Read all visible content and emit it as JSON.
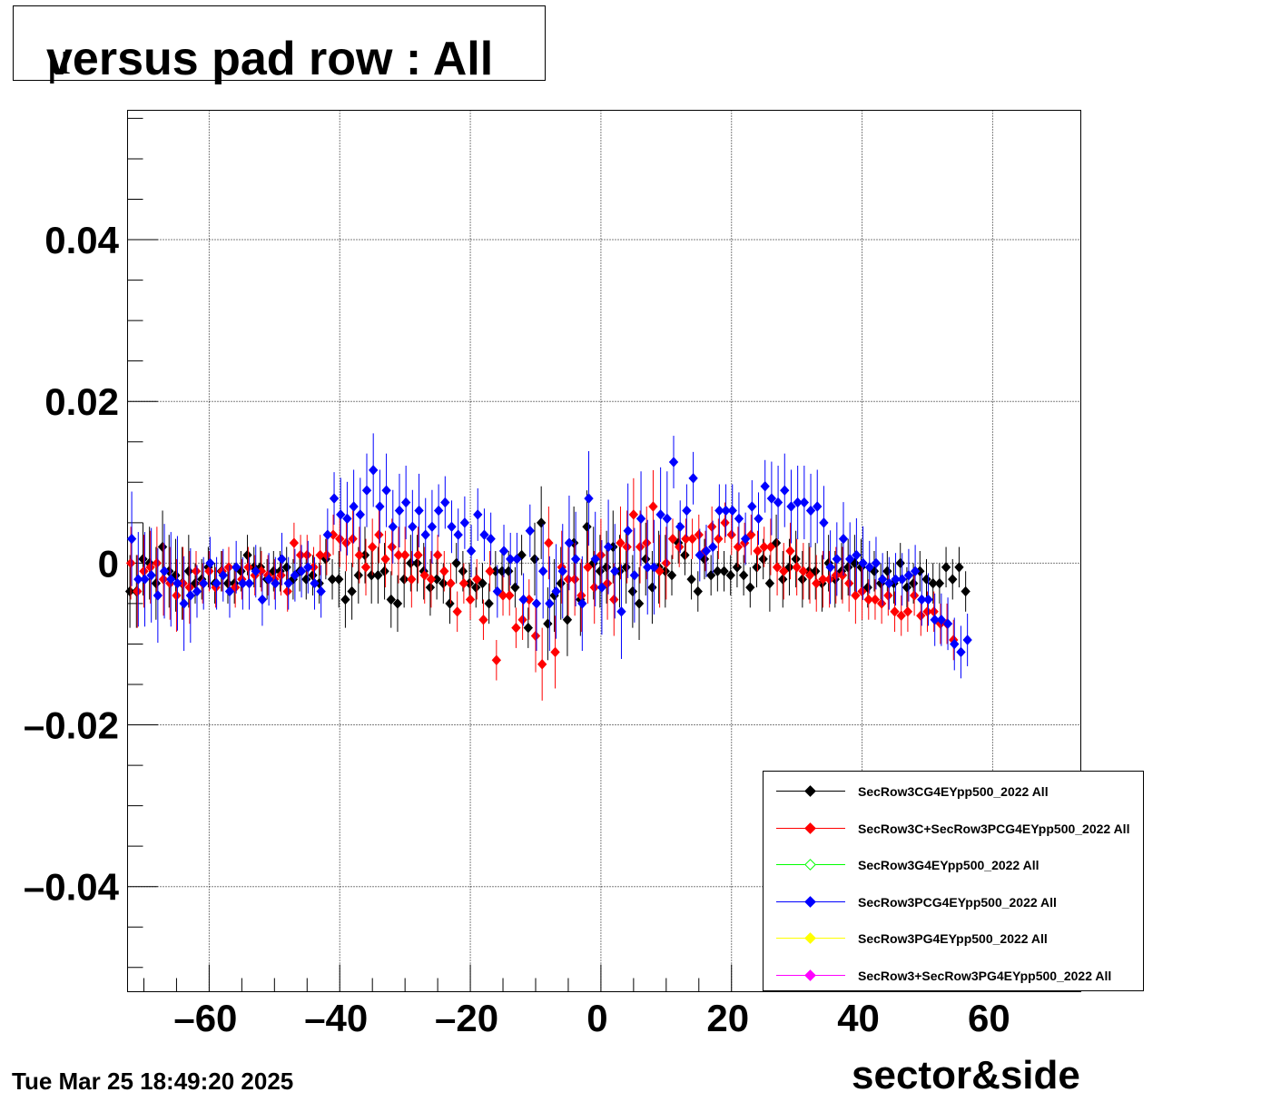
{
  "title": {
    "mu": "μ",
    "text": " versus pad row : All"
  },
  "timestamp": "Tue Mar 25 18:49:20 2025",
  "chart_data": {
    "type": "scatter",
    "title": "μ versus pad row : All",
    "xlabel": "sector&side",
    "ylabel": "",
    "xlim": [
      -72.5,
      73.5
    ],
    "ylim": [
      -0.053,
      0.056
    ],
    "xticks": [
      -60,
      -40,
      -20,
      0,
      20,
      40,
      60
    ],
    "xtick_labels": [
      "–60",
      "–40",
      "–20",
      "0",
      "20",
      "40",
      "60"
    ],
    "yticks": [
      -0.04,
      -0.02,
      0,
      0.02,
      0.04
    ],
    "ytick_labels": [
      "–0.04",
      "–0.02",
      "0",
      "0.02",
      "0.04"
    ],
    "grid": true,
    "legend_position": "bottom-right",
    "series": [
      {
        "name": "SecRow3CG4EYpp500_2022 All",
        "color": "#000000",
        "marker": "filled-diamond",
        "y": [
          -0.0035,
          -0.0035,
          0.0005,
          0.0,
          -0.0025,
          0.002,
          -0.001,
          -0.0015,
          -0.0025,
          -0.001,
          -0.0025,
          -0.002,
          -0.0005,
          -0.0025,
          -0.001,
          -0.0025,
          -0.0025,
          -0.001,
          0.001,
          -0.0005,
          -0.0005,
          -0.002,
          -0.001,
          -0.001,
          -0.0005,
          -0.002,
          -0.001,
          -0.002,
          -0.0015,
          -0.0025,
          0.0005,
          -0.002,
          -0.002,
          -0.0045,
          -0.0035,
          -0.0015,
          0.001,
          -0.0015,
          -0.0015,
          -0.001,
          -0.0045,
          -0.005,
          -0.002,
          0.0,
          0.0,
          -0.001,
          -0.003,
          -0.002,
          -0.0025,
          -0.005,
          0.0,
          -0.001,
          -0.0025,
          -0.003,
          -0.0025,
          -0.005,
          -0.001,
          -0.001,
          -0.001,
          -0.003,
          0.001,
          -0.008,
          0.0005,
          0.005,
          -0.0075,
          -0.004,
          -0.0025,
          -0.007,
          0.0025,
          -0.0045,
          0.0045,
          0.0,
          -0.001,
          -0.0005,
          0.002,
          -0.001,
          -0.0005,
          -0.0035,
          -0.005,
          0.0005,
          -0.003,
          -0.0005,
          -0.001,
          -0.0015,
          0.0025,
          0.001,
          -0.002,
          -0.0035,
          0.0005,
          -0.0015,
          -0.001,
          -0.001,
          -0.0015,
          -0.0005,
          -0.0015,
          -0.003,
          -0.0005,
          0.0005,
          -0.0025,
          0.0025,
          -0.002,
          -0.0005,
          0.0005,
          -0.002,
          -0.001,
          -0.001,
          -0.0025,
          0.0,
          -0.002,
          -0.001,
          -0.0005,
          0.0,
          -0.0005,
          -0.003,
          -0.001,
          -0.0025,
          -0.001,
          -0.0025,
          0.0,
          -0.003,
          -0.0025,
          -0.001,
          -0.002,
          -0.0025,
          -0.0025,
          -0.0005,
          -0.002,
          -0.0005,
          -0.0035
        ]
      },
      {
        "name": "SecRow3C+SecRow3PCG4EYpp500_2022 All",
        "color": "#ff0000",
        "marker": "filled-diamond",
        "y": [
          0.0,
          -0.0035,
          -0.001,
          -0.0005,
          0.0,
          -0.002,
          -0.0025,
          -0.004,
          -0.0025,
          -0.003,
          -0.001,
          -0.0025,
          -0.001,
          -0.003,
          -0.001,
          -0.0005,
          -0.003,
          -0.002,
          -0.0005,
          -0.0015,
          -0.001,
          -0.0015,
          -0.002,
          -0.0015,
          -0.0035,
          0.0025,
          0.001,
          0.001,
          -0.0005,
          0.001,
          0.001,
          0.0035,
          0.003,
          0.0025,
          0.003,
          0.001,
          -0.0005,
          0.002,
          0.0035,
          0.0005,
          0.002,
          0.001,
          0.001,
          -0.002,
          0.001,
          -0.0015,
          -0.002,
          0.001,
          -0.001,
          -0.0025,
          -0.006,
          -0.0025,
          -0.0045,
          -0.002,
          -0.007,
          -0.001,
          -0.012,
          -0.004,
          -0.004,
          -0.008,
          -0.007,
          -0.0045,
          -0.009,
          -0.0125,
          0.0025,
          -0.011,
          -0.0005,
          -0.002,
          -0.002,
          -0.004,
          -0.0005,
          -0.003,
          0.001,
          -0.0025,
          -0.0045,
          0.0025,
          0.002,
          0.006,
          0.002,
          0.0025,
          0.007,
          -0.001,
          0.0,
          0.003,
          0.002,
          0.003,
          0.003,
          0.0035,
          0.0015,
          0.0045,
          0.003,
          0.005,
          0.0035,
          0.002,
          0.0025,
          0.0035,
          0.0015,
          0.002,
          0.002,
          -0.0005,
          -0.001,
          0.0015,
          -0.0005,
          -0.001,
          -0.0015,
          -0.0025,
          -0.002,
          -0.002,
          -0.0015,
          -0.0015,
          -0.0025,
          -0.004,
          -0.0035,
          -0.0045,
          -0.0045,
          -0.005,
          -0.004,
          -0.006,
          -0.0065,
          -0.006,
          -0.004,
          -0.0065,
          -0.006,
          -0.006,
          -0.0075,
          -0.0075,
          -0.0095
        ]
      },
      {
        "name": "SecRow3G4EYpp500_2022 All",
        "color": "#00ff00",
        "marker": "open-diamond",
        "y": []
      },
      {
        "name": "SecRow3PCG4EYpp500_2022 All",
        "color": "#0000ff",
        "marker": "filled-diamond",
        "y": [
          0.003,
          -0.002,
          -0.002,
          -0.0015,
          -0.004,
          -0.001,
          -0.002,
          -0.0025,
          -0.005,
          -0.004,
          -0.0035,
          -0.0025,
          0.0,
          -0.0025,
          -0.0015,
          -0.0035,
          -0.0005,
          -0.0025,
          -0.0025,
          -0.001,
          -0.0045,
          -0.002,
          -0.0025,
          0.0005,
          -0.0025,
          -0.0015,
          -0.001,
          -0.0005,
          -0.0025,
          -0.0035,
          0.0035,
          0.008,
          0.006,
          0.0055,
          0.007,
          0.006,
          0.009,
          0.0115,
          0.007,
          0.009,
          0.0045,
          0.0065,
          0.0075,
          0.0045,
          0.0065,
          0.0035,
          0.0045,
          0.0065,
          0.0075,
          0.0045,
          0.0035,
          0.005,
          0.0015,
          0.006,
          0.0035,
          0.003,
          -0.0035,
          0.0015,
          0.0005,
          0.0005,
          -0.0045,
          0.004,
          -0.005,
          -0.001,
          -0.005,
          -0.0035,
          -0.001,
          0.0025,
          0.0005,
          -0.005,
          0.008,
          0.0005,
          -0.003,
          0.002,
          -0.001,
          -0.006,
          0.004,
          -0.0015,
          0.0055,
          -0.0005,
          -0.0005,
          0.006,
          0.0055,
          0.0125,
          0.0045,
          0.0065,
          0.0105,
          0.001,
          0.0015,
          0.002,
          0.0065,
          0.0065,
          0.0065,
          0.0055,
          0.003,
          0.007,
          0.0055,
          0.0095,
          0.008,
          0.0075,
          0.009,
          0.007,
          0.0075,
          0.0075,
          0.0065,
          0.007,
          0.005,
          -0.0005,
          0.0005,
          0.003,
          0.0005,
          0.001,
          0.0,
          -0.0005,
          0.0,
          -0.002,
          -0.0025,
          -0.002,
          -0.002,
          -0.0015,
          -0.001,
          -0.0045,
          -0.0045,
          -0.007,
          -0.007,
          -0.0075,
          -0.01,
          -0.011,
          -0.0095
        ]
      },
      {
        "name": "SecRow3PG4EYpp500_2022 All",
        "color": "#ffff00",
        "marker": "filled-diamond",
        "y": []
      },
      {
        "name": "SecRow3+SecRow3PG4EYpp500_2022 All",
        "color": "#ff00ff",
        "marker": "filled-diamond",
        "y": []
      }
    ]
  }
}
